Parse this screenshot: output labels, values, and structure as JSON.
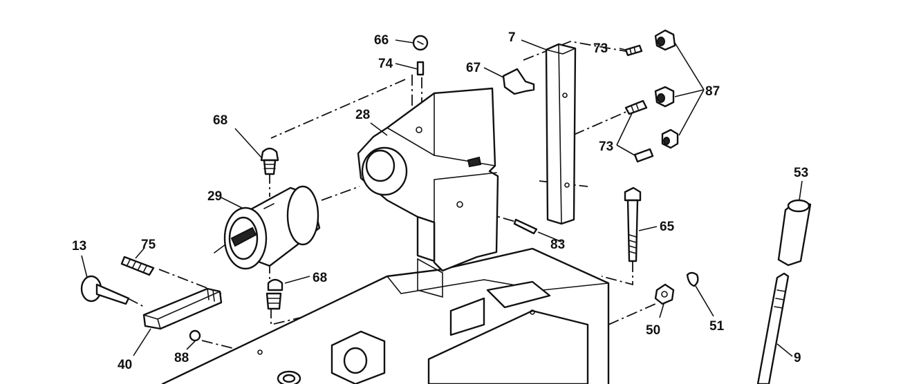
{
  "diagram": {
    "labels": {
      "p7": "7",
      "p9": "9",
      "p13": "13",
      "p28": "28",
      "p29": "29",
      "p40": "40",
      "p50": "50",
      "p51": "51",
      "p53": "53",
      "p65": "65",
      "p66": "66",
      "p67": "67",
      "p68a": "68",
      "p68b": "68",
      "p73a": "73",
      "p73b": "73",
      "p74": "74",
      "p75": "75",
      "p83": "83",
      "p87": "87",
      "p88": "88"
    }
  }
}
